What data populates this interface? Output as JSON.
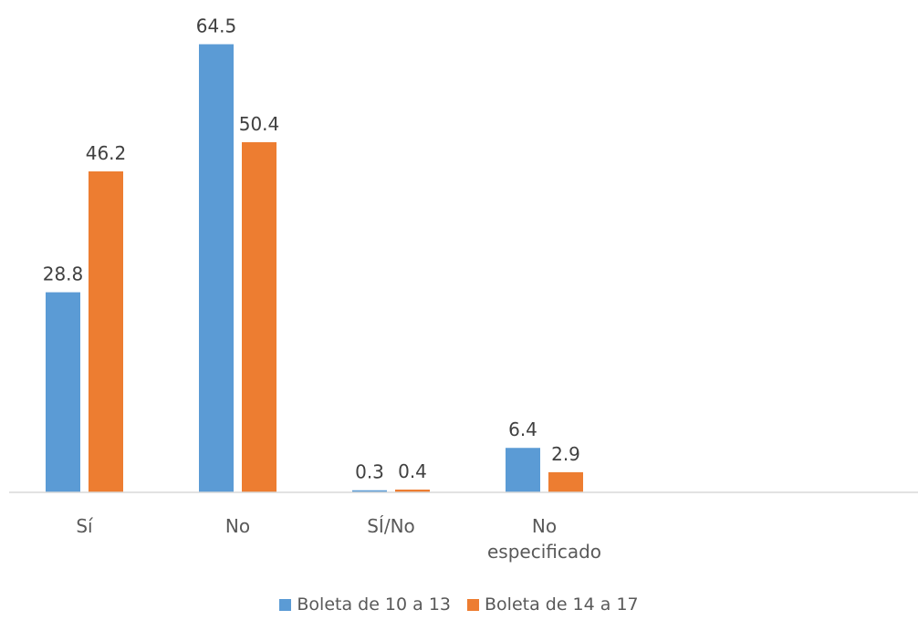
{
  "chart_data": {
    "type": "bar",
    "categories": [
      "Sí",
      "No",
      "SÍ/No",
      "No especificado"
    ],
    "category_lines": [
      [
        "Sí"
      ],
      [
        "No"
      ],
      [
        "SÍ/No"
      ],
      [
        "No",
        "especificado"
      ]
    ],
    "series": [
      {
        "name": "Boleta de 10 a 13",
        "values": [
          28.8,
          64.5,
          0.3,
          6.4
        ],
        "labels": [
          "28.8",
          "64.5",
          "0.3",
          "6.4"
        ],
        "color": "#5B9BD5"
      },
      {
        "name": "Boleta de 14 a 17",
        "values": [
          46.2,
          50.4,
          0.4,
          2.9
        ],
        "labels": [
          "46.2",
          "50.4",
          "0.4",
          "2.9"
        ],
        "color": "#ED7D31"
      }
    ],
    "ylim": [
      0,
      65
    ],
    "grid": false,
    "legend_position": "bottom"
  }
}
